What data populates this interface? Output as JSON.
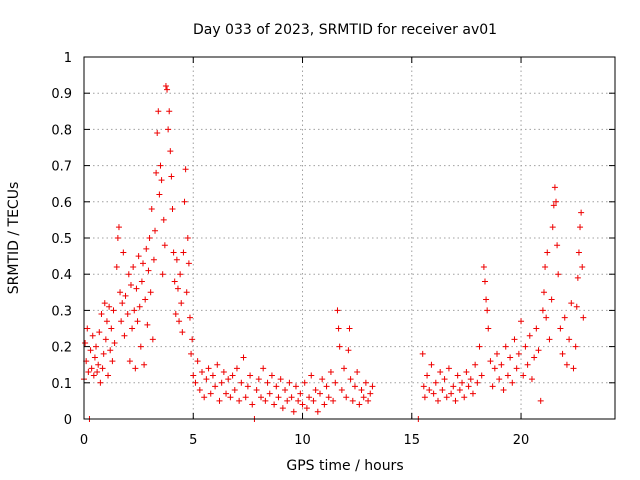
{
  "chart_data": {
    "type": "scatter",
    "title": "Day 033 of 2023, SRMTID for receiver av01",
    "xlabel": "GPS time / hours",
    "ylabel": "SRMTID / TECUs",
    "xlim": [
      0,
      24.3
    ],
    "ylim": [
      0,
      1
    ],
    "x_ticks": [
      0,
      5,
      10,
      15,
      20
    ],
    "y_ticks": [
      0,
      0.1,
      0.2,
      0.3,
      0.4,
      0.5,
      0.6,
      0.7,
      0.8,
      0.9,
      1
    ],
    "x_tick_labels": [
      "0",
      "5",
      "10",
      "15",
      "20"
    ],
    "y_tick_labels": [
      "0",
      "0.1",
      "0.2",
      "0.3",
      "0.4",
      "0.5",
      "0.6",
      "0.7",
      "0.8",
      "0.9",
      "1"
    ],
    "grid": true,
    "marker": "+",
    "color": "#ee0000",
    "series": [
      {
        "name": "av01",
        "points": [
          [
            0.0,
            0.11
          ],
          [
            0.05,
            0.21
          ],
          [
            0.1,
            0.16
          ],
          [
            0.15,
            0.25
          ],
          [
            0.2,
            0.13
          ],
          [
            0.25,
            0.0
          ],
          [
            0.3,
            0.19
          ],
          [
            0.35,
            0.14
          ],
          [
            0.4,
            0.23
          ],
          [
            0.45,
            0.12
          ],
          [
            0.5,
            0.17
          ],
          [
            0.55,
            0.2
          ],
          [
            0.6,
            0.13
          ],
          [
            0.65,
            0.15
          ],
          [
            0.7,
            0.24
          ],
          [
            0.75,
            0.1
          ],
          [
            0.8,
            0.29
          ],
          [
            0.85,
            0.14
          ],
          [
            0.9,
            0.18
          ],
          [
            0.95,
            0.32
          ],
          [
            1.0,
            0.22
          ],
          [
            1.05,
            0.27
          ],
          [
            1.1,
            0.12
          ],
          [
            1.15,
            0.31
          ],
          [
            1.2,
            0.19
          ],
          [
            1.25,
            0.25
          ],
          [
            1.3,
            0.16
          ],
          [
            1.35,
            0.3
          ],
          [
            1.4,
            0.21
          ],
          [
            1.5,
            0.42
          ],
          [
            1.55,
            0.5
          ],
          [
            1.6,
            0.53
          ],
          [
            1.65,
            0.35
          ],
          [
            1.7,
            0.27
          ],
          [
            1.75,
            0.32
          ],
          [
            1.8,
            0.46
          ],
          [
            1.85,
            0.23
          ],
          [
            1.9,
            0.34
          ],
          [
            2.0,
            0.29
          ],
          [
            2.05,
            0.4
          ],
          [
            2.1,
            0.16
          ],
          [
            2.15,
            0.37
          ],
          [
            2.2,
            0.25
          ],
          [
            2.25,
            0.42
          ],
          [
            2.3,
            0.3
          ],
          [
            2.35,
            0.14
          ],
          [
            2.4,
            0.36
          ],
          [
            2.45,
            0.27
          ],
          [
            2.5,
            0.45
          ],
          [
            2.55,
            0.31
          ],
          [
            2.6,
            0.2
          ],
          [
            2.65,
            0.38
          ],
          [
            2.7,
            0.43
          ],
          [
            2.75,
            0.15
          ],
          [
            2.8,
            0.33
          ],
          [
            2.85,
            0.47
          ],
          [
            2.9,
            0.26
          ],
          [
            2.95,
            0.41
          ],
          [
            3.0,
            0.5
          ],
          [
            3.05,
            0.35
          ],
          [
            3.1,
            0.58
          ],
          [
            3.15,
            0.22
          ],
          [
            3.2,
            0.44
          ],
          [
            3.25,
            0.52
          ],
          [
            3.3,
            0.68
          ],
          [
            3.35,
            0.79
          ],
          [
            3.4,
            0.85
          ],
          [
            3.45,
            0.62
          ],
          [
            3.5,
            0.7
          ],
          [
            3.55,
            0.66
          ],
          [
            3.6,
            0.4
          ],
          [
            3.65,
            0.55
          ],
          [
            3.7,
            0.48
          ],
          [
            3.75,
            0.92
          ],
          [
            3.8,
            0.91
          ],
          [
            3.85,
            0.8
          ],
          [
            3.9,
            0.85
          ],
          [
            3.95,
            0.74
          ],
          [
            4.0,
            0.67
          ],
          [
            4.05,
            0.58
          ],
          [
            4.1,
            0.46
          ],
          [
            4.15,
            0.38
          ],
          [
            4.2,
            0.29
          ],
          [
            4.25,
            0.44
          ],
          [
            4.3,
            0.36
          ],
          [
            4.35,
            0.27
          ],
          [
            4.4,
            0.4
          ],
          [
            4.45,
            0.32
          ],
          [
            4.5,
            0.24
          ],
          [
            4.55,
            0.46
          ],
          [
            4.6,
            0.6
          ],
          [
            4.65,
            0.69
          ],
          [
            4.7,
            0.35
          ],
          [
            4.75,
            0.5
          ],
          [
            4.8,
            0.43
          ],
          [
            4.85,
            0.28
          ],
          [
            4.9,
            0.18
          ],
          [
            4.95,
            0.22
          ],
          [
            5.0,
            0.12
          ],
          [
            5.1,
            0.1
          ],
          [
            5.2,
            0.16
          ],
          [
            5.3,
            0.08
          ],
          [
            5.4,
            0.13
          ],
          [
            5.5,
            0.06
          ],
          [
            5.6,
            0.11
          ],
          [
            5.7,
            0.14
          ],
          [
            5.8,
            0.07
          ],
          [
            5.9,
            0.12
          ],
          [
            6.0,
            0.09
          ],
          [
            6.1,
            0.15
          ],
          [
            6.2,
            0.05
          ],
          [
            6.3,
            0.1
          ],
          [
            6.4,
            0.13
          ],
          [
            6.5,
            0.07
          ],
          [
            6.6,
            0.11
          ],
          [
            6.7,
            0.06
          ],
          [
            6.8,
            0.12
          ],
          [
            6.9,
            0.08
          ],
          [
            7.0,
            0.14
          ],
          [
            7.1,
            0.05
          ],
          [
            7.2,
            0.1
          ],
          [
            7.3,
            0.17
          ],
          [
            7.4,
            0.06
          ],
          [
            7.5,
            0.09
          ],
          [
            7.6,
            0.12
          ],
          [
            7.7,
            0.04
          ],
          [
            7.8,
            0.0
          ],
          [
            7.9,
            0.08
          ],
          [
            8.0,
            0.11
          ],
          [
            8.1,
            0.06
          ],
          [
            8.2,
            0.14
          ],
          [
            8.3,
            0.05
          ],
          [
            8.4,
            0.1
          ],
          [
            8.5,
            0.07
          ],
          [
            8.6,
            0.12
          ],
          [
            8.7,
            0.04
          ],
          [
            8.8,
            0.09
          ],
          [
            8.9,
            0.06
          ],
          [
            9.0,
            0.11
          ],
          [
            9.1,
            0.03
          ],
          [
            9.2,
            0.08
          ],
          [
            9.3,
            0.05
          ],
          [
            9.4,
            0.1
          ],
          [
            9.5,
            0.06
          ],
          [
            9.6,
            0.02
          ],
          [
            9.7,
            0.09
          ],
          [
            9.8,
            0.05
          ],
          [
            9.9,
            0.07
          ],
          [
            10.0,
            0.04
          ],
          [
            10.1,
            0.1
          ],
          [
            10.2,
            0.03
          ],
          [
            10.3,
            0.06
          ],
          [
            10.4,
            0.12
          ],
          [
            10.5,
            0.05
          ],
          [
            10.6,
            0.08
          ],
          [
            10.7,
            0.02
          ],
          [
            10.8,
            0.07
          ],
          [
            10.9,
            0.11
          ],
          [
            11.0,
            0.04
          ],
          [
            11.1,
            0.09
          ],
          [
            11.2,
            0.06
          ],
          [
            11.3,
            0.13
          ],
          [
            11.4,
            0.05
          ],
          [
            11.5,
            0.1
          ],
          [
            11.6,
            0.3
          ],
          [
            11.65,
            0.25
          ],
          [
            11.7,
            0.2
          ],
          [
            11.8,
            0.08
          ],
          [
            11.9,
            0.14
          ],
          [
            12.0,
            0.06
          ],
          [
            12.1,
            0.19
          ],
          [
            12.15,
            0.25
          ],
          [
            12.2,
            0.11
          ],
          [
            12.3,
            0.05
          ],
          [
            12.4,
            0.09
          ],
          [
            12.5,
            0.13
          ],
          [
            12.6,
            0.04
          ],
          [
            12.7,
            0.08
          ],
          [
            12.8,
            0.06
          ],
          [
            12.9,
            0.1
          ],
          [
            13.0,
            0.05
          ],
          [
            13.1,
            0.07
          ],
          [
            13.2,
            0.09
          ],
          [
            15.3,
            0.0
          ],
          [
            15.5,
            0.18
          ],
          [
            15.55,
            0.09
          ],
          [
            15.6,
            0.06
          ],
          [
            15.7,
            0.12
          ],
          [
            15.8,
            0.08
          ],
          [
            15.9,
            0.15
          ],
          [
            16.0,
            0.07
          ],
          [
            16.1,
            0.1
          ],
          [
            16.2,
            0.05
          ],
          [
            16.3,
            0.13
          ],
          [
            16.4,
            0.08
          ],
          [
            16.5,
            0.11
          ],
          [
            16.6,
            0.06
          ],
          [
            16.7,
            0.14
          ],
          [
            16.8,
            0.07
          ],
          [
            16.9,
            0.09
          ],
          [
            17.0,
            0.05
          ],
          [
            17.1,
            0.12
          ],
          [
            17.2,
            0.08
          ],
          [
            17.3,
            0.1
          ],
          [
            17.4,
            0.06
          ],
          [
            17.5,
            0.13
          ],
          [
            17.6,
            0.09
          ],
          [
            17.7,
            0.11
          ],
          [
            17.8,
            0.07
          ],
          [
            17.9,
            0.15
          ],
          [
            18.0,
            0.1
          ],
          [
            18.1,
            0.2
          ],
          [
            18.2,
            0.12
          ],
          [
            18.3,
            0.42
          ],
          [
            18.35,
            0.38
          ],
          [
            18.4,
            0.33
          ],
          [
            18.45,
            0.3
          ],
          [
            18.5,
            0.25
          ],
          [
            18.6,
            0.16
          ],
          [
            18.7,
            0.09
          ],
          [
            18.8,
            0.14
          ],
          [
            18.9,
            0.18
          ],
          [
            19.0,
            0.11
          ],
          [
            19.1,
            0.15
          ],
          [
            19.2,
            0.08
          ],
          [
            19.3,
            0.2
          ],
          [
            19.4,
            0.12
          ],
          [
            19.5,
            0.17
          ],
          [
            19.6,
            0.1
          ],
          [
            19.7,
            0.22
          ],
          [
            19.8,
            0.14
          ],
          [
            19.9,
            0.18
          ],
          [
            20.0,
            0.27
          ],
          [
            20.1,
            0.12
          ],
          [
            20.2,
            0.2
          ],
          [
            20.3,
            0.15
          ],
          [
            20.4,
            0.23
          ],
          [
            20.5,
            0.11
          ],
          [
            20.6,
            0.17
          ],
          [
            20.7,
            0.25
          ],
          [
            20.8,
            0.19
          ],
          [
            20.9,
            0.05
          ],
          [
            21.0,
            0.3
          ],
          [
            21.05,
            0.35
          ],
          [
            21.1,
            0.42
          ],
          [
            21.15,
            0.28
          ],
          [
            21.2,
            0.46
          ],
          [
            21.3,
            0.22
          ],
          [
            21.4,
            0.33
          ],
          [
            21.45,
            0.53
          ],
          [
            21.5,
            0.59
          ],
          [
            21.55,
            0.64
          ],
          [
            21.6,
            0.6
          ],
          [
            21.65,
            0.48
          ],
          [
            21.7,
            0.4
          ],
          [
            21.8,
            0.25
          ],
          [
            21.9,
            0.18
          ],
          [
            22.0,
            0.28
          ],
          [
            22.1,
            0.15
          ],
          [
            22.2,
            0.22
          ],
          [
            22.3,
            0.32
          ],
          [
            22.4,
            0.14
          ],
          [
            22.5,
            0.2
          ],
          [
            22.55,
            0.31
          ],
          [
            22.6,
            0.39
          ],
          [
            22.65,
            0.46
          ],
          [
            22.7,
            0.53
          ],
          [
            22.75,
            0.57
          ],
          [
            22.8,
            0.42
          ],
          [
            22.85,
            0.28
          ]
        ]
      }
    ]
  }
}
